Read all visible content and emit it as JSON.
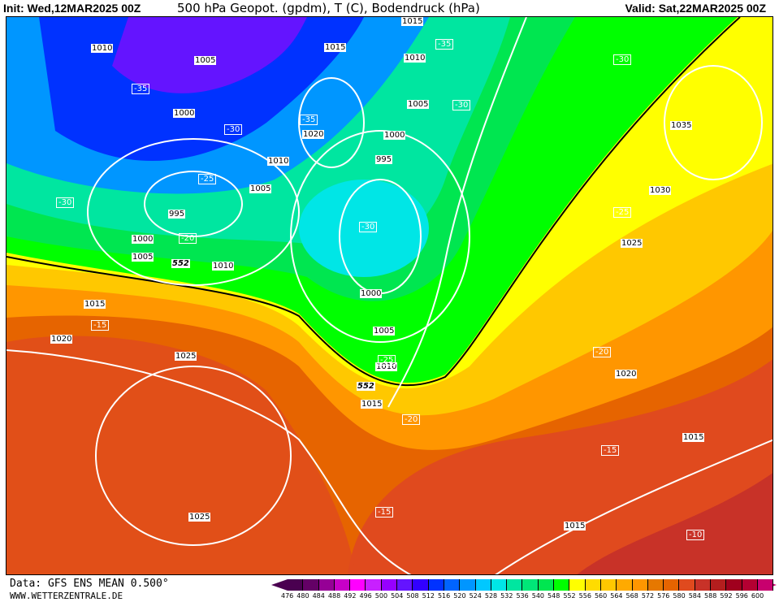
{
  "header": {
    "init": "Init: Wed,12MAR2025 00Z",
    "title": "500 hPa Geopot. (gpdm), T (C), Bodendruck (hPa)",
    "valid": "Valid: Sat,22MAR2025 00Z"
  },
  "footer": {
    "data": "Data: GFS ENS MEAN 0.500°",
    "site": "WWW.WETTERZENTRALE.DE"
  },
  "legend": {
    "labels": [
      "476",
      "480",
      "484",
      "488",
      "492",
      "496",
      "500",
      "504",
      "508",
      "512",
      "516",
      "520",
      "524",
      "528",
      "532",
      "536",
      "540",
      "548",
      "552",
      "556",
      "560",
      "564",
      "568",
      "572",
      "576",
      "580",
      "584",
      "588",
      "592",
      "596",
      "600"
    ],
    "colors": [
      "#4a0050",
      "#640066",
      "#960096",
      "#c800c8",
      "#ff00ff",
      "#c820ff",
      "#9600ff",
      "#6414ff",
      "#3200ff",
      "#0032ff",
      "#0064ff",
      "#0096ff",
      "#00c8ff",
      "#00e6e6",
      "#00e6a0",
      "#00e678",
      "#00e650",
      "#00ff00",
      "#ffff00",
      "#ffdc00",
      "#ffc800",
      "#ffaa00",
      "#ff9600",
      "#e67800",
      "#e66400",
      "#e04a1e",
      "#c83228",
      "#b41e1e",
      "#a0001e",
      "#b40032",
      "#c8006e"
    ]
  },
  "isobar_labels": [
    "1015",
    "1010",
    "1015",
    "1010",
    "1005",
    "1005",
    "1000",
    "1000",
    "1035",
    "995",
    "1010",
    "1020",
    "1005",
    "1030",
    "995",
    "1000",
    "1025",
    "1005",
    "1010",
    "1000",
    "1015",
    "1005",
    "1020",
    "1025",
    "1010",
    "1020",
    "1015",
    "1015",
    "1025",
    "1015"
  ],
  "temp_labels": [
    "-35",
    "-30",
    "-35",
    "-30",
    "-30",
    "-35",
    "-25",
    "-30",
    "-25",
    "-30",
    "-20",
    "-15",
    "-20",
    "-25",
    "-20",
    "-15",
    "-15",
    "-10"
  ],
  "geopot_labels": [
    "552",
    "552"
  ]
}
